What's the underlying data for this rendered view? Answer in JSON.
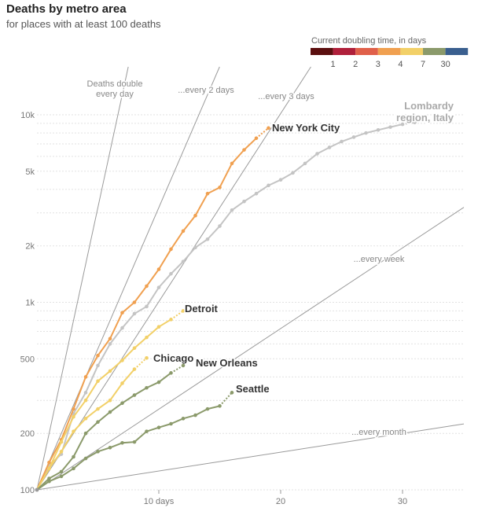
{
  "title": "Deaths by metro area",
  "subtitle": "for places with at least 100 deaths",
  "legend": {
    "title": "Current doubling time, in days",
    "colors": [
      "#5b0f0f",
      "#b0203b",
      "#e0604a",
      "#f0a050",
      "#f2d068",
      "#8b9a6b",
      "#3a5f8f"
    ],
    "labels": [
      "1",
      "2",
      "3",
      "4",
      "7",
      "30"
    ]
  },
  "reference_lines": [
    {
      "label": "Deaths double every day",
      "lines": [
        "Deaths double",
        "every day"
      ],
      "doubling_days": 1
    },
    {
      "label": "...every 2 days",
      "lines": [
        "...every 2 days"
      ],
      "doubling_days": 2
    },
    {
      "label": "...every 3 days",
      "lines": [
        "...every 3 days"
      ],
      "doubling_days": 3
    },
    {
      "label": "...every week",
      "lines": [
        "...every week"
      ],
      "doubling_days": 7
    },
    {
      "label": "...every month",
      "lines": [
        "...every month"
      ],
      "doubling_days": 30
    }
  ],
  "chart_data": {
    "type": "line",
    "title": "Deaths by metro area",
    "subtitle": "for places with at least 100 deaths",
    "xlabel": "",
    "ylabel": "",
    "y_scale": "log",
    "xlim": [
      0,
      35
    ],
    "ylim": [
      100,
      13000
    ],
    "x_ticks": [
      10,
      20,
      30
    ],
    "x_tick_labels": [
      "10 days",
      "20",
      "30"
    ],
    "y_ticks": [
      100,
      200,
      500,
      1000,
      2000,
      5000,
      10000
    ],
    "y_tick_labels": [
      "100",
      "200",
      "500",
      "1k",
      "2k",
      "5k",
      "10k"
    ],
    "grid": "horizontal dotted",
    "series": [
      {
        "name": "Lombardy region, Italy",
        "label_lines": [
          "Lombardy",
          "region, Italy"
        ],
        "color": "#c4c4c4",
        "x": [
          0,
          1,
          2,
          3,
          4,
          5,
          6,
          7,
          8,
          9,
          10,
          11,
          12,
          13,
          14,
          15,
          16,
          17,
          18,
          19,
          20,
          21,
          22,
          23,
          24,
          25,
          26,
          27,
          28,
          29,
          30,
          31
        ],
        "values": [
          100,
          135,
          155,
          255,
          330,
          460,
          600,
          730,
          870,
          950,
          1200,
          1420,
          1650,
          1960,
          2170,
          2550,
          3100,
          3450,
          3800,
          4200,
          4500,
          4900,
          5500,
          6200,
          6700,
          7200,
          7600,
          8000,
          8300,
          8600,
          8900,
          9100
        ]
      },
      {
        "name": "New York City",
        "label_lines": [
          "New York City"
        ],
        "color": "#f0a050",
        "x": [
          0,
          1,
          2,
          3,
          4,
          5,
          6,
          7,
          8,
          9,
          10,
          11,
          12,
          13,
          14,
          15,
          16,
          17,
          18,
          19
        ],
        "values": [
          100,
          140,
          185,
          270,
          400,
          520,
          640,
          880,
          1000,
          1220,
          1500,
          1920,
          2400,
          2900,
          3800,
          4100,
          5500,
          6500,
          7500,
          8500
        ]
      },
      {
        "name": "Detroit",
        "label_lines": [
          "Detroit"
        ],
        "color": "#f2d068",
        "x": [
          0,
          1,
          2,
          3,
          4,
          5,
          6,
          7,
          8,
          9,
          10,
          11,
          12
        ],
        "values": [
          100,
          130,
          180,
          245,
          300,
          380,
          430,
          490,
          570,
          650,
          740,
          810,
          900
        ]
      },
      {
        "name": "Chicago",
        "label_lines": [
          "Chicago"
        ],
        "color": "#f2d068",
        "x": [
          0,
          1,
          2,
          3,
          4,
          5,
          6,
          7,
          8,
          9
        ],
        "values": [
          100,
          130,
          160,
          205,
          240,
          270,
          300,
          370,
          440,
          505
        ]
      },
      {
        "name": "New Orleans",
        "label_lines": [
          "New Orleans"
        ],
        "color": "#8b9a6b",
        "x": [
          0,
          1,
          2,
          3,
          4,
          5,
          6,
          7,
          8,
          9,
          10,
          11,
          12
        ],
        "values": [
          100,
          115,
          125,
          150,
          200,
          230,
          260,
          290,
          320,
          350,
          375,
          420,
          460
        ]
      },
      {
        "name": "Seattle",
        "label_lines": [
          "Seattle"
        ],
        "color": "#8b9a6b",
        "x": [
          0,
          1,
          2,
          3,
          4,
          5,
          6,
          7,
          8,
          9,
          10,
          11,
          12,
          13,
          14,
          15,
          16
        ],
        "values": [
          100,
          111,
          118,
          130,
          147,
          160,
          168,
          178,
          180,
          205,
          215,
          225,
          240,
          250,
          270,
          280,
          330
        ]
      }
    ]
  }
}
